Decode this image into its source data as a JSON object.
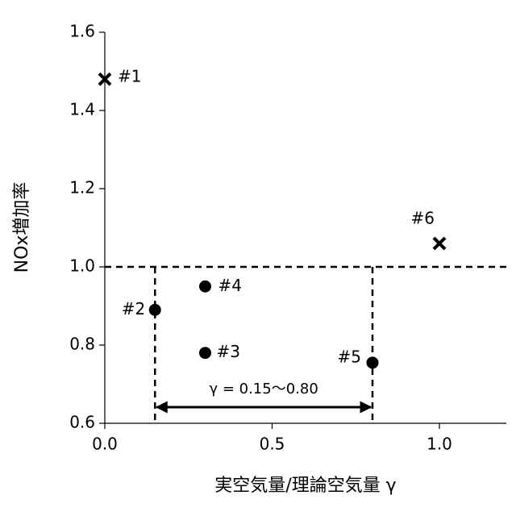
{
  "chart_data": {
    "type": "scatter",
    "x_label": "実空気量/理論空気量 γ",
    "y_label": "NOx増加率",
    "xlim": [
      0,
      1.2
    ],
    "xticks": [
      {
        "value": 0,
        "label": "0.0"
      },
      0.5,
      {
        "value": 1,
        "label": "1.0"
      }
    ],
    "ylim": [
      0.6,
      1.6
    ],
    "yticks": [
      0.6,
      0.8,
      {
        "value": 1,
        "label": "1.0"
      },
      1.2,
      1.4,
      1.6
    ],
    "points": [
      {
        "label": "#1",
        "x": 0,
        "y": 1.48,
        "marker": "x"
      },
      {
        "label": "#2",
        "x": 0.15,
        "y": 0.89,
        "marker": "o"
      },
      {
        "label": "#3",
        "x": 0.3,
        "y": 0.78,
        "marker": "o"
      },
      {
        "label": "#4",
        "x": 0.3,
        "y": 0.95,
        "marker": "o"
      },
      {
        "label": "#5",
        "x": 0.8,
        "y": 0.755,
        "marker": "o"
      },
      {
        "label": "#6",
        "x": 1.0,
        "y": 1.06,
        "marker": "x"
      }
    ],
    "ref_y": 1.0,
    "ref_x": [
      0.15,
      0.8
    ],
    "arrow": {
      "from": 0.15,
      "to": 0.8,
      "label": "γ = 0.15～0.80"
    },
    "color": "#000000"
  }
}
